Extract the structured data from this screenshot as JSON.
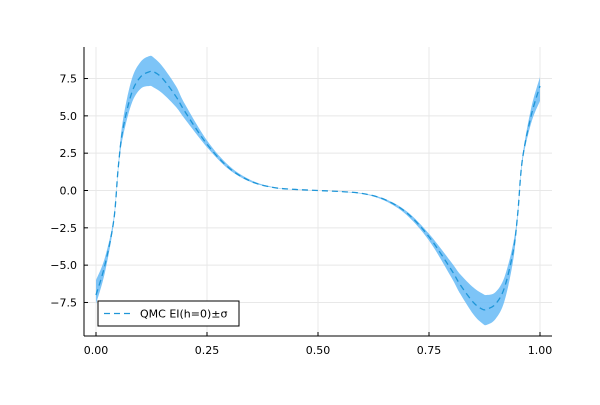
{
  "chart_data": {
    "type": "line",
    "title": "",
    "xlabel": "",
    "ylabel": "",
    "xlim": [
      0.0,
      1.0
    ],
    "ylim": [
      -9.5,
      9.5
    ],
    "x_ticks": [
      {
        "value": 0.0,
        "label": "0.00"
      },
      {
        "value": 0.25,
        "label": "0.25"
      },
      {
        "value": 0.5,
        "label": "0.50"
      },
      {
        "value": 0.75,
        "label": "0.75"
      },
      {
        "value": 1.0,
        "label": "1.00"
      }
    ],
    "y_ticks": [
      {
        "value": -7.5,
        "label": "−7.5"
      },
      {
        "value": -5.0,
        "label": "−5.0"
      },
      {
        "value": -2.5,
        "label": "−2.5"
      },
      {
        "value": 0.0,
        "label": "0.0"
      },
      {
        "value": 2.5,
        "label": "2.5"
      },
      {
        "value": 5.0,
        "label": "5.0"
      },
      {
        "value": 7.5,
        "label": "7.5"
      }
    ],
    "grid": true,
    "legend": {
      "position": "bottom-left",
      "label": "QMC EI(h=0)±σ"
    },
    "series": [
      {
        "name": "QMC EI(h=0)±σ",
        "style": "dashed",
        "color": "#1f96d8",
        "band_color": "#66baf6",
        "x": [
          0.0,
          0.02,
          0.04,
          0.05,
          0.06,
          0.08,
          0.1,
          0.12,
          0.13,
          0.15,
          0.18,
          0.2,
          0.25,
          0.3,
          0.35,
          0.4,
          0.45,
          0.5,
          0.55,
          0.6,
          0.65,
          0.7,
          0.75,
          0.8,
          0.82,
          0.85,
          0.87,
          0.88,
          0.9,
          0.92,
          0.94,
          0.95,
          0.96,
          0.98,
          1.0
        ],
        "y": [
          -7.0,
          -5.0,
          -2.0,
          1.5,
          4.0,
          6.5,
          7.6,
          7.95,
          7.95,
          7.5,
          6.3,
          5.3,
          3.1,
          1.5,
          0.6,
          0.2,
          0.07,
          0.0,
          -0.07,
          -0.2,
          -0.6,
          -1.5,
          -3.1,
          -5.3,
          -6.3,
          -7.5,
          -7.95,
          -7.95,
          -7.6,
          -6.5,
          -4.0,
          -1.5,
          2.0,
          5.0,
          7.0
        ],
        "lower": [
          -7.6,
          -5.5,
          -2.2,
          1.3,
          3.5,
          5.8,
          6.8,
          7.0,
          6.9,
          6.5,
          5.6,
          4.8,
          2.9,
          1.4,
          0.55,
          0.18,
          0.06,
          0.0,
          -0.08,
          -0.23,
          -0.68,
          -1.65,
          -3.35,
          -5.8,
          -6.9,
          -8.3,
          -8.9,
          -9.0,
          -8.6,
          -7.4,
          -4.6,
          -1.7,
          1.8,
          4.5,
          6.0
        ],
        "upper": [
          -6.0,
          -4.5,
          -1.8,
          1.7,
          4.6,
          7.4,
          8.6,
          9.0,
          8.9,
          8.3,
          7.0,
          5.8,
          3.35,
          1.65,
          0.68,
          0.23,
          0.08,
          0.0,
          -0.06,
          -0.18,
          -0.55,
          -1.4,
          -2.9,
          -4.8,
          -5.6,
          -6.5,
          -6.9,
          -7.0,
          -6.8,
          -5.8,
          -3.5,
          -1.3,
          2.2,
          5.5,
          7.6
        ]
      }
    ]
  }
}
